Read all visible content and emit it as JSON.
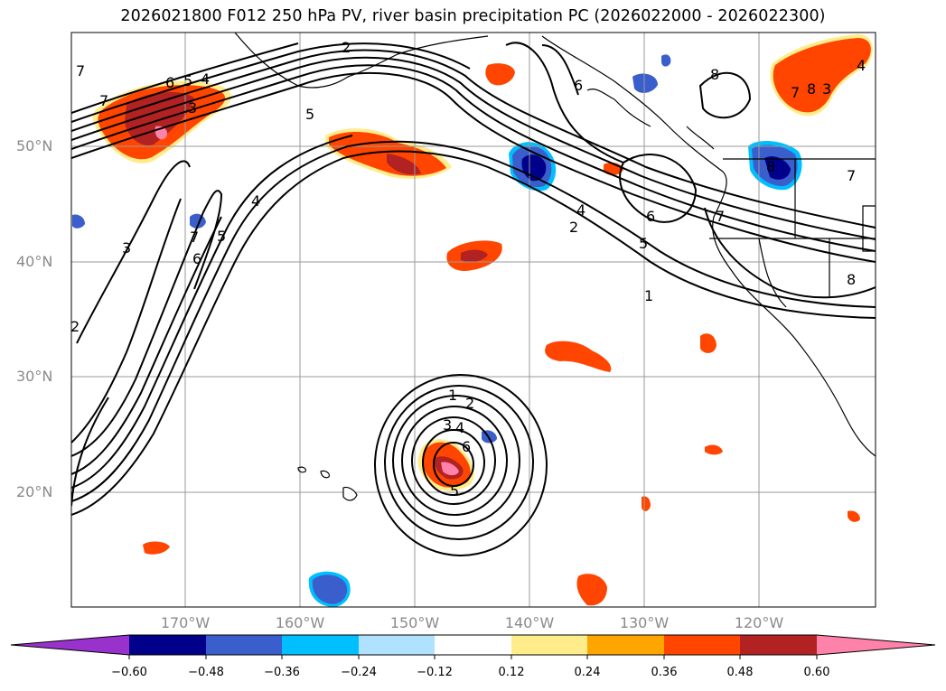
{
  "title": "2026021800 F012 250 hPa PV, river basin precipitation PC (2026022000 - 2026022300)",
  "lat_labels": [
    "50°N",
    "40°N",
    "30°N",
    "20°N"
  ],
  "lon_labels": [
    "170°W",
    "160°W",
    "150°W",
    "140°W",
    "130°W",
    "120°W"
  ],
  "pv_contour_labels": [
    "1",
    "2",
    "3",
    "4",
    "5",
    "6",
    "7",
    "8"
  ],
  "colorbar": {
    "ticks": [
      "−0.60",
      "−0.48",
      "−0.36",
      "−0.24",
      "−0.12",
      "0.12",
      "0.24",
      "0.36",
      "0.48",
      "0.60"
    ],
    "colors": [
      "#9932cc",
      "#00008b",
      "#3a5fcd",
      "#00bfff",
      "#b0e2ff",
      "#ffffff",
      "#ffec8b",
      "#ffa500",
      "#ff4500",
      "#b22222",
      "#ff82ab"
    ]
  },
  "colors": {
    "land_line": "#000000",
    "grid": "#9a9a9a",
    "pv_line": "#000000"
  }
}
